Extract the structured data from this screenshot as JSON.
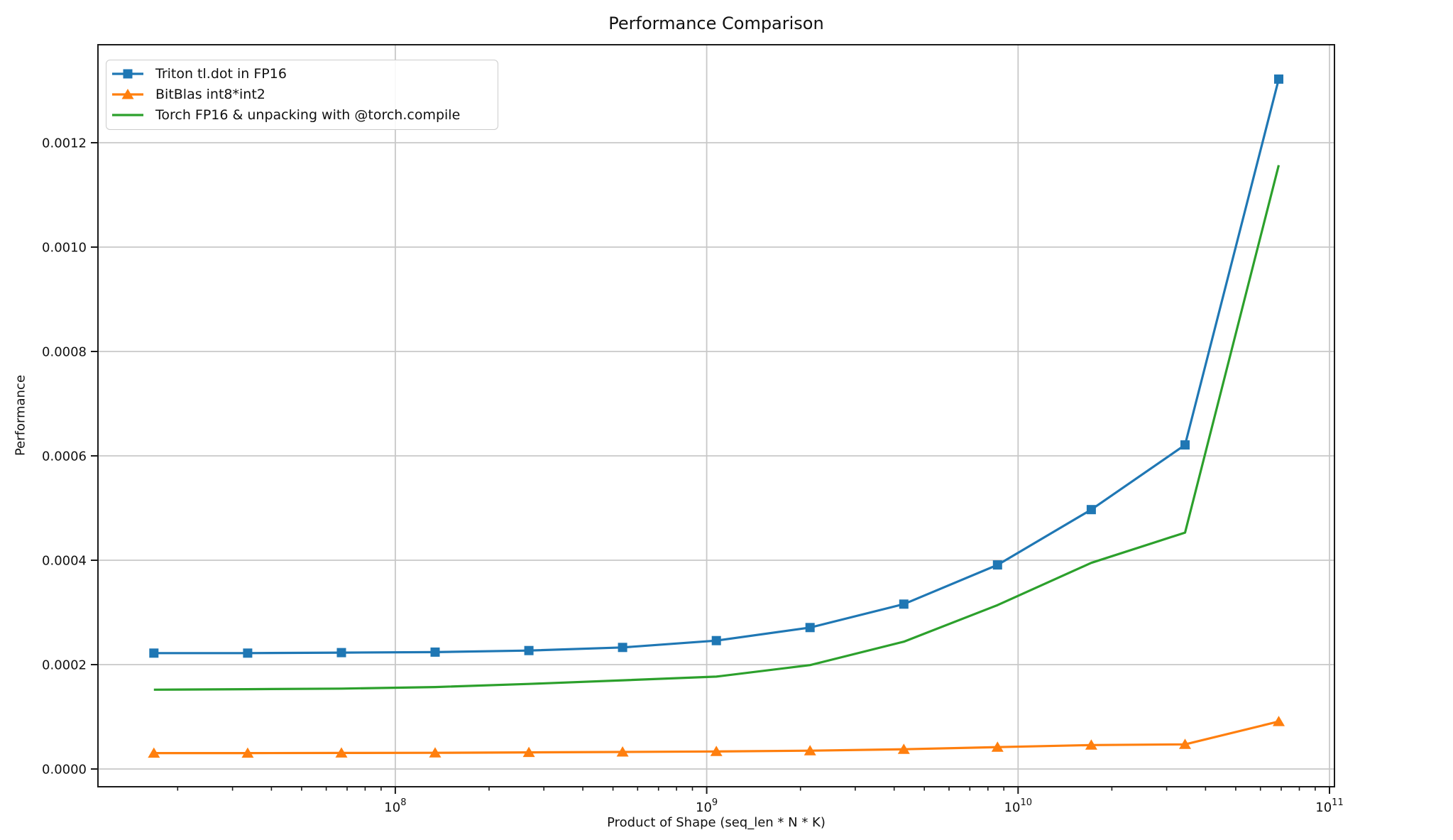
{
  "chart_data": {
    "type": "line",
    "title": "Performance Comparison",
    "xlabel": "Product of Shape (seq_len * N * K)",
    "ylabel": "Performance",
    "x_scale": "log",
    "grid": true,
    "legend_position": "upper left",
    "xlim_log10": [
      7.045,
      11.016
    ],
    "ylim": [
      -3.4e-05,
      0.0013878
    ],
    "x": [
      16777216,
      33554432,
      67108864,
      134217728,
      268435456,
      536870912,
      1073741824,
      2147483648,
      4294967296,
      8589934592,
      17179869184,
      34359738368,
      68719476736
    ],
    "series": [
      {
        "name": "Triton tl.dot in FP16",
        "color": "#1f77b4",
        "marker": "square",
        "values": [
          0.000222,
          0.000222,
          0.000223,
          0.000224,
          0.000227,
          0.000233,
          0.000246,
          0.000271,
          0.000316,
          0.000391,
          0.000497,
          0.000621,
          0.001322
        ]
      },
      {
        "name": "BitBlas int8*int2",
        "color": "#ff7f0e",
        "marker": "triangle",
        "values": [
          3.05e-05,
          3.05e-05,
          3.08e-05,
          3.1e-05,
          3.18e-05,
          3.27e-05,
          3.36e-05,
          3.51e-05,
          3.78e-05,
          4.19e-05,
          4.58e-05,
          4.72e-05,
          9.1e-05
        ]
      },
      {
        "name": "Torch FP16 & unpacking with @torch.compile",
        "color": "#2ca02c",
        "marker": "none",
        "values": [
          0.000152,
          0.000153,
          0.000154,
          0.000157,
          0.000163,
          0.00017,
          0.000177,
          0.000199,
          0.000244,
          0.000314,
          0.000395,
          0.000453,
          0.001157
        ]
      }
    ],
    "yticks": {
      "values": [
        0.0,
        0.0002,
        0.0004,
        0.0006,
        0.0008,
        0.001,
        0.0012
      ],
      "labels": [
        "0.0000",
        "0.0002",
        "0.0004",
        "0.0006",
        "0.0008",
        "0.0010",
        "0.0012"
      ]
    },
    "xticks": {
      "values": [
        100000000,
        1000000000,
        10000000000,
        100000000000
      ],
      "base": "10",
      "exponents": [
        "8",
        "9",
        "10",
        "11"
      ]
    }
  }
}
